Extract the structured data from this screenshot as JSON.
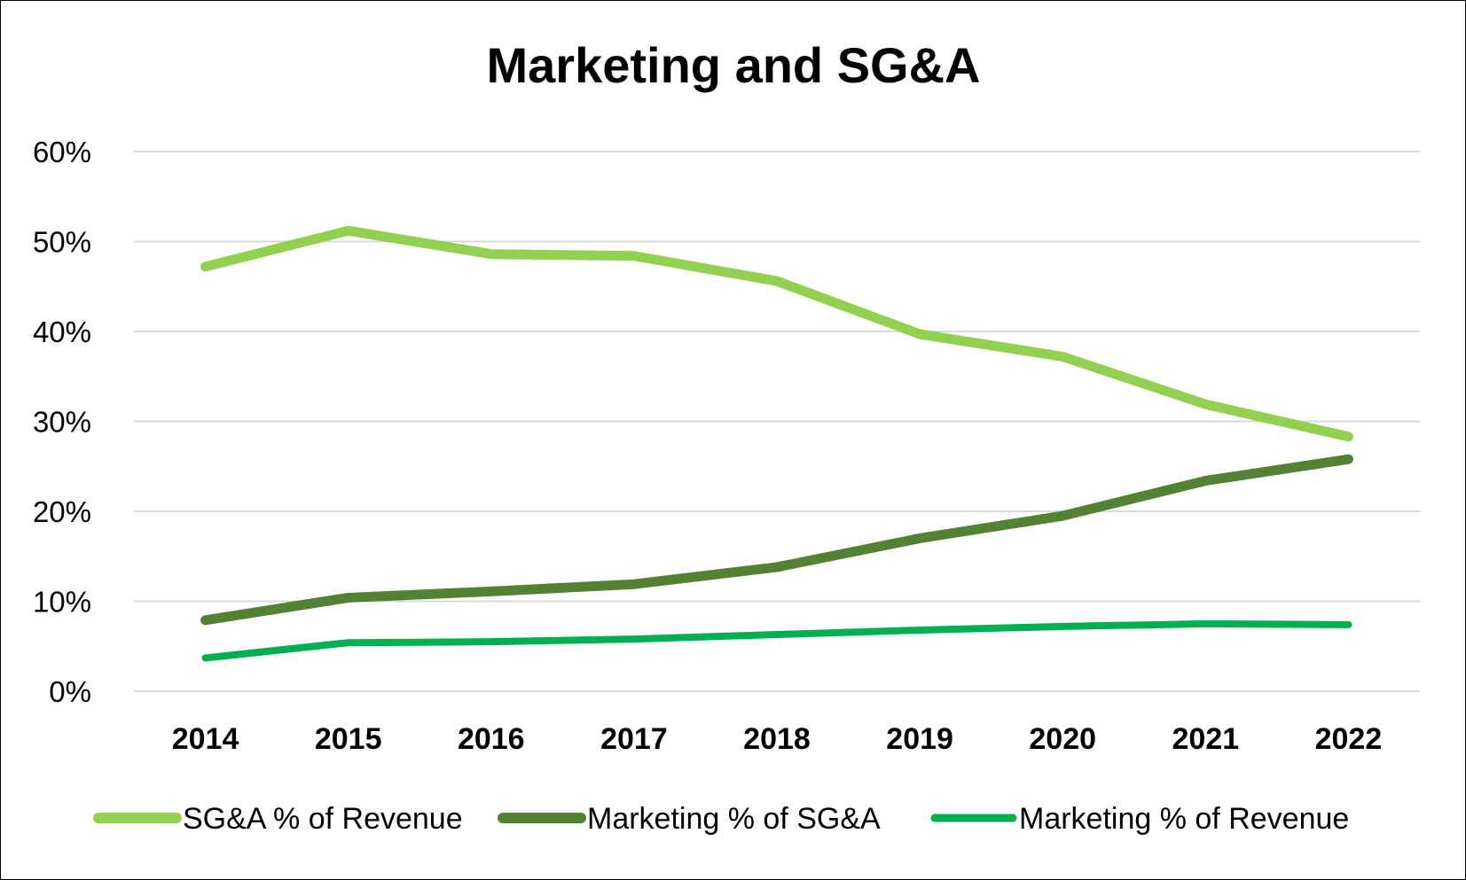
{
  "chart_data": {
    "type": "line",
    "title": "Marketing and SG&A",
    "xlabel": "",
    "ylabel": "",
    "x": [
      "2014",
      "2015",
      "2016",
      "2017",
      "2018",
      "2019",
      "2020",
      "2021",
      "2022"
    ],
    "ylim": [
      0,
      60
    ],
    "yticks": [
      0,
      10,
      20,
      30,
      40,
      50,
      60
    ],
    "ytick_labels": [
      "0%",
      "10%",
      "20%",
      "30%",
      "40%",
      "50%",
      "60%"
    ],
    "grid": true,
    "legend_position": "bottom",
    "series": [
      {
        "name": "SG&A % of Revenue",
        "color": "#92d050",
        "values": [
          47.2,
          51.2,
          48.6,
          48.4,
          45.6,
          39.7,
          37.2,
          31.9,
          28.3
        ]
      },
      {
        "name": "Marketing % of SG&A",
        "color": "#548235",
        "values": [
          7.9,
          10.4,
          11.1,
          11.9,
          13.8,
          17.0,
          19.5,
          23.4,
          25.8
        ]
      },
      {
        "name": "Marketing % of Revenue",
        "color": "#00b050",
        "values": [
          3.7,
          5.4,
          5.5,
          5.8,
          6.3,
          6.8,
          7.2,
          7.5,
          7.4
        ]
      }
    ]
  }
}
